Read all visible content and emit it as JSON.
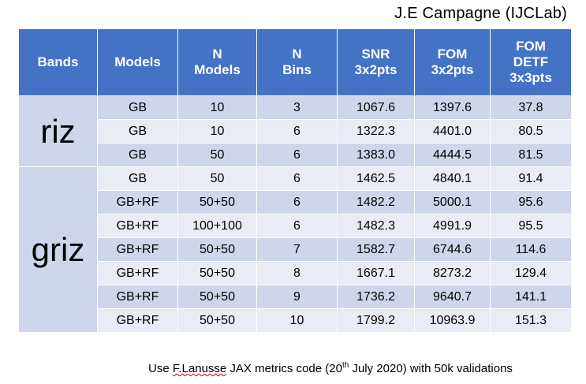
{
  "author": "J.E Campagne (IJCLab)",
  "headers": {
    "bands": "Bands",
    "models": "Models",
    "n_models": [
      "N",
      "Models"
    ],
    "n_bins": [
      "N",
      "Bins"
    ],
    "snr": [
      "SNR",
      "3x2pts"
    ],
    "fom": [
      "FOM",
      "3x2pts"
    ],
    "fom_detf": [
      "FOM",
      "DETF",
      "3x3pts"
    ]
  },
  "bands": [
    {
      "name": "riz",
      "rows": [
        {
          "model": "GB",
          "n_models": "10",
          "n_bins": "3",
          "snr": "1067.6",
          "fom": "1397.6",
          "fom_detf": "37.8"
        },
        {
          "model": "GB",
          "n_models": "10",
          "n_bins": "6",
          "snr": "1322.3",
          "fom": "4401.0",
          "fom_detf": "80.5"
        },
        {
          "model": "GB",
          "n_models": "50",
          "n_bins": "6",
          "snr": "1383.0",
          "fom": "4444.5",
          "fom_detf": "81.5"
        }
      ]
    },
    {
      "name": "griz",
      "rows": [
        {
          "model": "GB",
          "n_models": "50",
          "n_bins": "6",
          "snr": "1462.5",
          "fom": "4840.1",
          "fom_detf": "91.4"
        },
        {
          "model": "GB+RF",
          "n_models": "50+50",
          "n_bins": "6",
          "snr": "1482.2",
          "fom": "5000.1",
          "fom_detf": "95.6"
        },
        {
          "model": "GB+RF",
          "n_models": "100+100",
          "n_bins": "6",
          "snr": "1482.3",
          "fom": "4991.9",
          "fom_detf": "95.5"
        },
        {
          "model": "GB+RF",
          "n_models": "50+50",
          "n_bins": "7",
          "snr": "1582.7",
          "fom": "6744.6",
          "fom_detf": "114.6"
        },
        {
          "model": "GB+RF",
          "n_models": "50+50",
          "n_bins": "8",
          "snr": "1667.1",
          "fom": "8273.2",
          "fom_detf": "129.4"
        },
        {
          "model": "GB+RF",
          "n_models": "50+50",
          "n_bins": "9",
          "snr": "1736.2",
          "fom": "9640.7",
          "fom_detf": "141.1"
        },
        {
          "model": "GB+RF",
          "n_models": "50+50",
          "n_bins": "10",
          "snr": "1799.2",
          "fom": "10963.9",
          "fom_detf": "151.3"
        }
      ]
    }
  ],
  "note": {
    "prefix": "Use ",
    "author": "F.Lanusse",
    "middle": " JAX metrics code (20",
    "sup": "th",
    "suffix": " July 2020) with 50k validations"
  },
  "colors": {
    "header_bg": "#4472c4",
    "row_dark": "#cfd5ea",
    "row_light": "#e9ebf5",
    "note_underline": "#d00000"
  }
}
